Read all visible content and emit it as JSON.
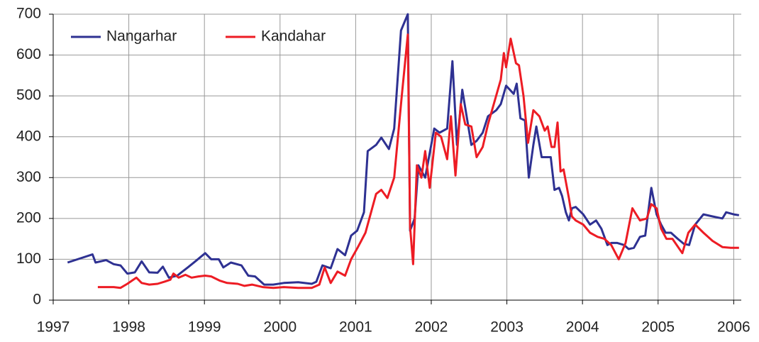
{
  "chart_data": {
    "type": "line",
    "xlim": [
      1997,
      2006.1
    ],
    "xticks": [
      1997,
      1998,
      1999,
      2000,
      2001,
      2002,
      2003,
      2004,
      2005,
      2006
    ],
    "ylim": [
      0,
      700
    ],
    "yticks": [
      0,
      100,
      200,
      300,
      400,
      500,
      600,
      700
    ],
    "grid": true,
    "legend": "top-left",
    "series": [
      {
        "name": "Nangarhar",
        "color": "#2e3192",
        "x": [
          1997.19,
          1997.52,
          1997.56,
          1997.7,
          1997.8,
          1997.89,
          1997.98,
          1998.08,
          1998.17,
          1998.27,
          1998.38,
          1998.45,
          1998.53,
          1998.64,
          1998.78,
          1998.88,
          1999.01,
          1999.09,
          1999.19,
          1999.25,
          1999.35,
          1999.49,
          1999.58,
          1999.67,
          1999.79,
          1999.91,
          2000.05,
          2000.24,
          2000.42,
          2000.48,
          2000.56,
          2000.67,
          2000.76,
          2000.86,
          2000.94,
          2001.02,
          2001.11,
          2001.16,
          2001.27,
          2001.34,
          2001.44,
          2001.51,
          2001.6,
          2001.69,
          2001.72,
          2001.78,
          2001.83,
          2001.92,
          2002.04,
          2002.11,
          2002.21,
          2002.28,
          2002.34,
          2002.41,
          2002.53,
          2002.6,
          2002.68,
          2002.75,
          2002.86,
          2002.92,
          2002.99,
          2003.09,
          2003.13,
          2003.18,
          2003.24,
          2003.29,
          2003.35,
          2003.39,
          2003.46,
          2003.52,
          2003.58,
          2003.63,
          2003.69,
          2003.73,
          2003.78,
          2003.82,
          2003.86,
          2003.91,
          2004.01,
          2004.1,
          2004.18,
          2004.25,
          2004.33,
          2004.38,
          2004.46,
          2004.55,
          2004.61,
          2004.68,
          2004.76,
          2004.83,
          2004.91,
          2004.98,
          2005.04,
          2005.1,
          2005.17,
          2005.26,
          2005.34,
          2005.41,
          2005.49,
          2005.6,
          2005.72,
          2005.85,
          2005.9,
          2006.0,
          2006.07
        ],
        "values": [
          92,
          112,
          92,
          98,
          88,
          85,
          65,
          68,
          95,
          68,
          67,
          82,
          55,
          60,
          80,
          95,
          115,
          100,
          100,
          80,
          92,
          85,
          60,
          58,
          38,
          38,
          42,
          44,
          40,
          45,
          85,
          78,
          125,
          110,
          158,
          170,
          215,
          365,
          380,
          398,
          370,
          420,
          660,
          700,
          170,
          200,
          330,
          300,
          420,
          410,
          420,
          585,
          380,
          515,
          380,
          390,
          410,
          450,
          465,
          480,
          525,
          505,
          530,
          445,
          440,
          300,
          380,
          425,
          350,
          350,
          350,
          270,
          275,
          255,
          215,
          195,
          225,
          228,
          210,
          185,
          195,
          175,
          135,
          140,
          140,
          135,
          125,
          128,
          155,
          158,
          275,
          210,
          185,
          165,
          165,
          150,
          138,
          135,
          185,
          210,
          205,
          200,
          215,
          210,
          208
        ]
      },
      {
        "name": "Kandahar",
        "color": "#ed1c24",
        "x": [
          1997.59,
          1997.8,
          1997.89,
          1997.98,
          1998.1,
          1998.17,
          1998.27,
          1998.38,
          1998.47,
          1998.55,
          1998.59,
          1998.66,
          1998.75,
          1998.83,
          1998.92,
          1999.01,
          1999.09,
          1999.2,
          1999.3,
          1999.44,
          1999.53,
          1999.63,
          1999.77,
          1999.91,
          2000.05,
          2000.24,
          2000.42,
          2000.52,
          2000.59,
          2000.67,
          2000.76,
          2000.86,
          2000.94,
          2001.03,
          2001.13,
          2001.27,
          2001.34,
          2001.42,
          2001.51,
          2001.61,
          2001.69,
          2001.72,
          2001.76,
          2001.81,
          2001.87,
          2001.92,
          2001.98,
          2002.06,
          2002.13,
          2002.21,
          2002.26,
          2002.32,
          2002.39,
          2002.45,
          2002.53,
          2002.6,
          2002.68,
          2002.75,
          2002.92,
          2002.96,
          2002.99,
          2003.05,
          2003.12,
          2003.16,
          2003.22,
          2003.28,
          2003.35,
          2003.43,
          2003.5,
          2003.54,
          2003.59,
          2003.63,
          2003.67,
          2003.71,
          2003.75,
          2003.82,
          2003.86,
          2003.91,
          2004.01,
          2004.1,
          2004.2,
          2004.29,
          2004.38,
          2004.48,
          2004.57,
          2004.66,
          2004.76,
          2004.85,
          2004.91,
          2004.98,
          2005.04,
          2005.11,
          2005.19,
          2005.32,
          2005.4,
          2005.49,
          2005.6,
          2005.72,
          2005.85,
          2005.96,
          2006.07
        ],
        "values": [
          32,
          32,
          30,
          40,
          55,
          42,
          38,
          40,
          45,
          50,
          65,
          55,
          62,
          55,
          58,
          60,
          58,
          48,
          42,
          40,
          35,
          38,
          32,
          30,
          32,
          30,
          30,
          38,
          80,
          42,
          70,
          60,
          100,
          130,
          165,
          260,
          270,
          250,
          300,
          500,
          650,
          180,
          88,
          330,
          300,
          365,
          275,
          410,
          400,
          345,
          450,
          305,
          480,
          430,
          425,
          350,
          375,
          430,
          540,
          605,
          570,
          640,
          580,
          575,
          500,
          385,
          465,
          450,
          415,
          425,
          375,
          375,
          435,
          315,
          320,
          250,
          205,
          195,
          185,
          165,
          155,
          150,
          135,
          100,
          140,
          225,
          195,
          200,
          235,
          225,
          175,
          150,
          150,
          115,
          165,
          185,
          165,
          145,
          130,
          128,
          128
        ]
      }
    ]
  }
}
